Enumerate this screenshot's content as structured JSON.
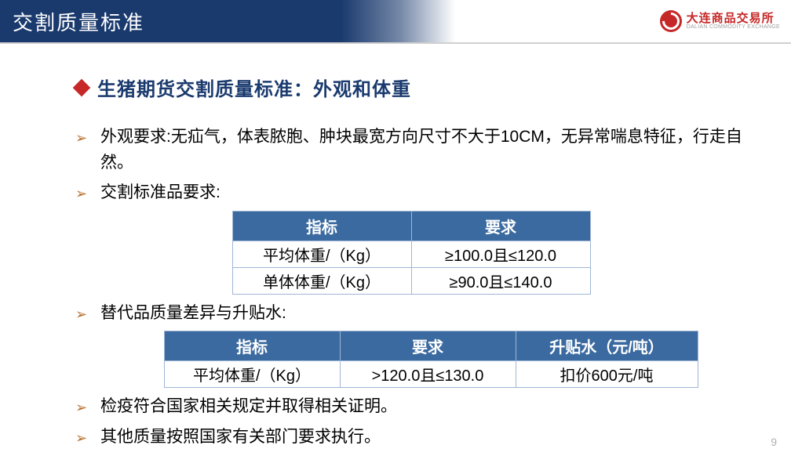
{
  "header": {
    "title": "交割质量标准",
    "brand_cn": "大连商品交易所",
    "brand_en": "DALIAN COMMODITY EXCHANGE"
  },
  "subtitle": "生猪期货交割质量标准：外观和体重",
  "bullets": {
    "b1": "外观要求:无疝气，体表脓胞、肿块最宽方向尺寸不大于10CM，无异常喘息特征，行走自然。",
    "b2": "交割标准品要求:",
    "b3": "替代品质量差异与升贴水:",
    "b4": "检疫符合国家相关规定并取得相关证明。",
    "b5": "其他质量按照国家有关部门要求执行。"
  },
  "table1": {
    "headers": [
      "指标",
      "要求"
    ],
    "rows": [
      [
        "平均体重/（Kg）",
        "≥100.0且≤120.0"
      ],
      [
        "单体体重/（Kg）",
        "≥90.0且≤140.0"
      ]
    ]
  },
  "table2": {
    "headers": [
      "指标",
      "要求",
      "升贴水（元/吨）"
    ],
    "rows": [
      [
        "平均体重/（Kg）",
        ">120.0且≤130.0",
        "扣价600元/吨"
      ]
    ]
  },
  "page_number": "9",
  "colors": {
    "navy": "#1a3a6e",
    "red": "#c62828",
    "arrow": "#b86f2e",
    "table_header_bg": "#3b6aa0",
    "table_border": "#9fb6d4"
  }
}
